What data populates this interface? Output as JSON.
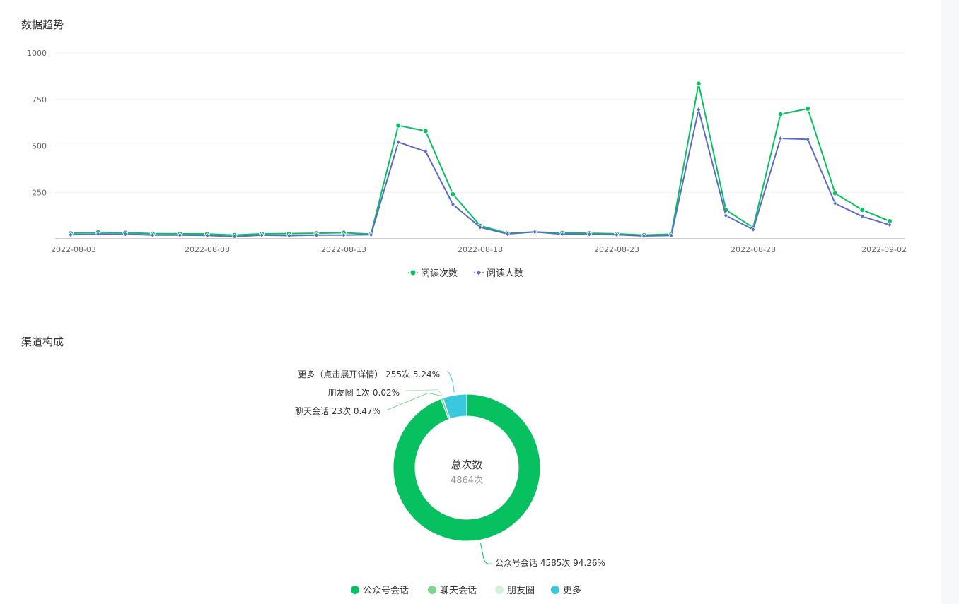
{
  "sections": {
    "trend_title": "数据趋势",
    "channel_title": "渠道构成"
  },
  "colors": {
    "green": "#07c160",
    "purple": "#5b6bc7",
    "light_green": "#7ed491",
    "pale_green": "#d3f1d9",
    "cyan": "#39c9df"
  },
  "chart_data": [
    {
      "type": "line",
      "title": "数据趋势",
      "xlabel": "",
      "ylabel": "",
      "ylim": [
        0,
        1000
      ],
      "yticks": [
        1000,
        750,
        500,
        250
      ],
      "x": [
        "2022-08-03",
        "2022-08-04",
        "2022-08-05",
        "2022-08-06",
        "2022-08-07",
        "2022-08-08",
        "2022-08-09",
        "2022-08-10",
        "2022-08-11",
        "2022-08-12",
        "2022-08-13",
        "2022-08-14",
        "2022-08-15",
        "2022-08-16",
        "2022-08-17",
        "2022-08-18",
        "2022-08-19",
        "2022-08-20",
        "2022-08-21",
        "2022-08-22",
        "2022-08-23",
        "2022-08-24",
        "2022-08-25",
        "2022-08-26",
        "2022-08-27",
        "2022-08-28",
        "2022-08-29",
        "2022-08-30",
        "2022-08-31",
        "2022-09-01",
        "2022-09-02"
      ],
      "xtick_labels": [
        "2022-08-03",
        "2022-08-08",
        "2022-08-13",
        "2022-08-18",
        "2022-08-23",
        "2022-08-28",
        "2022-09-02"
      ],
      "series": [
        {
          "name": "阅读次数",
          "marker": "circle",
          "values": [
            30,
            35,
            33,
            28,
            27,
            26,
            20,
            27,
            28,
            30,
            33,
            25,
            610,
            580,
            240,
            70,
            30,
            37,
            32,
            30,
            27,
            20,
            25,
            835,
            155,
            60,
            670,
            700,
            245,
            155,
            95
          ]
        },
        {
          "name": "阅读人数",
          "marker": "diamond",
          "values": [
            22,
            26,
            25,
            20,
            20,
            18,
            12,
            20,
            17,
            20,
            20,
            22,
            520,
            470,
            185,
            62,
            26,
            37,
            25,
            24,
            22,
            15,
            18,
            695,
            125,
            50,
            540,
            535,
            190,
            120,
            75
          ]
        }
      ],
      "legend": "bottom-center",
      "grid": true
    },
    {
      "type": "pie",
      "title": "渠道构成",
      "center_title": "总次数",
      "center_value": "4864次",
      "slices": [
        {
          "name": "公众号会话",
          "value": 4585,
          "label": "公众号会话 4585次 94.26%"
        },
        {
          "name": "聊天会话",
          "value": 23,
          "label": "聊天会话 23次 0.47%"
        },
        {
          "name": "朋友圈",
          "value": 1,
          "label": "朋友圈 1次 0.02%"
        },
        {
          "name": "更多",
          "value": 255,
          "label": "更多（点击展开详情） 255次 5.24%"
        }
      ],
      "legend": "bottom-center"
    }
  ]
}
